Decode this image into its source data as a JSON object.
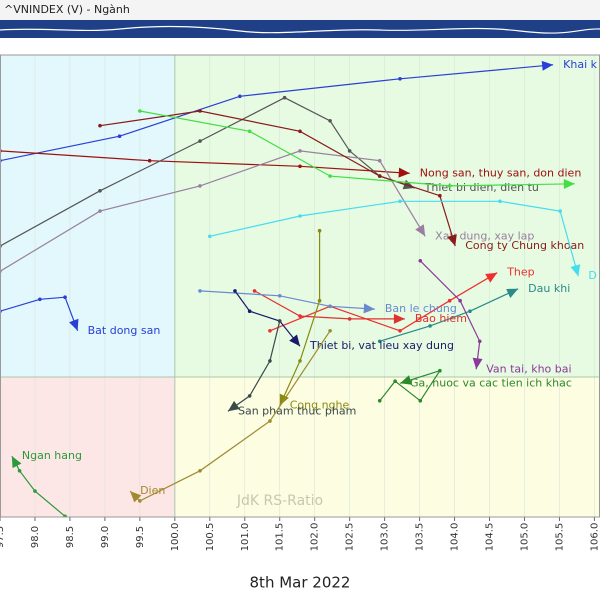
{
  "chart_data": {
    "type": "rrg",
    "title": "^VNINDEX (V) - Ngành",
    "x_label": "JdK RS-Ratio",
    "date": "8th Mar 2022",
    "xlim": [
      97.5,
      106.08
    ],
    "ylim": [
      98.0,
      104.6
    ],
    "xticks": [
      97.5,
      {
        "value": 98.0,
        "label": "98.0"
      },
      98.5,
      {
        "value": 99.0,
        "label": "99.0"
      },
      99.5,
      {
        "value": 100.0,
        "label": "100.0"
      },
      100.5,
      {
        "value": 101.0,
        "label": "101.0"
      },
      101.5,
      {
        "value": 102.0,
        "label": "102.0"
      },
      102.5,
      {
        "value": 103.0,
        "label": "103.0"
      },
      103.5,
      {
        "value": 104.0,
        "label": "104.0"
      },
      104.5,
      {
        "value": 105.0,
        "label": "105.0"
      },
      105.5,
      {
        "value": 106.0,
        "label": "106.0"
      }
    ],
    "center": 100,
    "grid": true,
    "series": [
      {
        "name": "Khai k",
        "color": "#2a3fd6",
        "x": [
          97.5,
          99.21,
          100.93,
          103.22,
          105.41
        ],
        "values": [
          103.09,
          103.44,
          104.01,
          104.26,
          104.46
        ]
      },
      {
        "name": "Nong san, thuy san, don dien",
        "color": "#a01010",
        "x": [
          97.5,
          99.64,
          101.79,
          103.36
        ],
        "values": [
          103.23,
          103.09,
          103.01,
          102.91
        ]
      },
      {
        "name": "Thiet bi dien, dien tu",
        "color": "#555555",
        "x": [
          97.5,
          98.93,
          100.36,
          101.57,
          102.22,
          102.5,
          102.93,
          103.43
        ],
        "values": [
          101.87,
          102.66,
          103.37,
          103.99,
          103.66,
          103.23,
          102.87,
          102.7
        ]
      },
      {
        "name": "Xay dung, xay lap",
        "color": "#9a7fa0",
        "x": [
          97.5,
          98.93,
          100.36,
          101.79,
          102.93,
          103.58
        ],
        "values": [
          101.51,
          102.37,
          102.73,
          103.23,
          103.09,
          102.01
        ]
      },
      {
        "name": "Cong ty Chung khoan",
        "color": "#8b1a1a",
        "x": [
          98.93,
          100.36,
          101.79,
          102.93,
          103.79,
          104.01
        ],
        "values": [
          103.59,
          103.8,
          103.51,
          102.87,
          102.59,
          101.87
        ]
      },
      {
        "color": "#44dd44",
        "x": [
          99.5,
          101.07,
          102.22,
          103.93,
          105.72
        ],
        "values": [
          103.8,
          103.51,
          102.87,
          102.73,
          102.76
        ]
      },
      {
        "name": "D",
        "color": "#44ddee",
        "x": [
          100.5,
          101.79,
          103.22,
          104.65,
          105.51,
          105.77
        ],
        "values": [
          102.01,
          102.3,
          102.51,
          102.51,
          102.37,
          101.44
        ]
      },
      {
        "name": "Thep",
        "color": "#ee3030",
        "x": [
          101.36,
          102.22,
          103.22,
          103.93,
          104.61
        ],
        "values": [
          100.66,
          101.01,
          100.66,
          101.09,
          101.49
        ]
      },
      {
        "name": "Dau khi",
        "color": "#2a8a8a",
        "x": [
          102.93,
          103.65,
          104.22,
          104.91
        ],
        "values": [
          100.51,
          100.73,
          100.94,
          101.26
        ]
      },
      {
        "name": "Bao hiem",
        "color": "#e03030",
        "x": [
          101.14,
          101.79,
          102.5,
          103.29
        ],
        "values": [
          101.23,
          100.87,
          100.83,
          100.83
        ]
      },
      {
        "name": "Ban le chung",
        "color": "#6a8ad0",
        "x": [
          100.36,
          101.5,
          102.22,
          102.86
        ],
        "values": [
          101.23,
          101.16,
          101.01,
          100.97
        ]
      },
      {
        "name": "Van tai, kho bai",
        "color": "#8a3a9a",
        "x": [
          103.51,
          104.08,
          104.36,
          104.31
        ],
        "values": [
          101.66,
          101.09,
          100.51,
          100.11
        ]
      },
      {
        "name": "Thiet bi, vat lieu xay dung",
        "color": "#1a1a6a",
        "x": [
          100.86,
          101.07,
          101.5,
          101.79
        ],
        "values": [
          101.23,
          100.94,
          100.8,
          100.44
        ]
      },
      {
        "name": "Bat dong san",
        "color": "#2a3fd6",
        "x": [
          97.5,
          98.07,
          98.43,
          98.61
        ],
        "values": [
          100.94,
          101.11,
          101.14,
          100.66
        ]
      },
      {
        "name": "Ga, nuoc va cac tien ich khac",
        "color": "#2a8a2a",
        "x": [
          102.93,
          103.15,
          103.51,
          103.79,
          103.22
        ],
        "values": [
          99.66,
          99.94,
          99.66,
          100.09,
          99.91
        ]
      },
      {
        "name": "Cong nghe",
        "color": "#8a8a10",
        "x": [
          102.07,
          102.07,
          101.79,
          101.5
        ],
        "values": [
          102.09,
          101.09,
          100.23,
          99.59
        ]
      },
      {
        "name": "San pham thuc pham",
        "color": "#3a4a4a",
        "x": [
          101.5,
          101.36,
          101.07,
          100.76
        ],
        "values": [
          100.8,
          100.23,
          99.73,
          99.51
        ]
      },
      {
        "name": "Dien",
        "color": "#a08a30",
        "x": [
          102.22,
          101.36,
          100.36,
          99.5,
          99.36
        ],
        "values": [
          100.66,
          99.37,
          98.66,
          98.23,
          98.37
        ]
      },
      {
        "name": "Ngan hang",
        "color": "#2a9a3a",
        "x": [
          98.43,
          98.0,
          97.78,
          97.67
        ],
        "values": [
          98.01,
          98.37,
          98.66,
          98.87
        ]
      }
    ]
  }
}
